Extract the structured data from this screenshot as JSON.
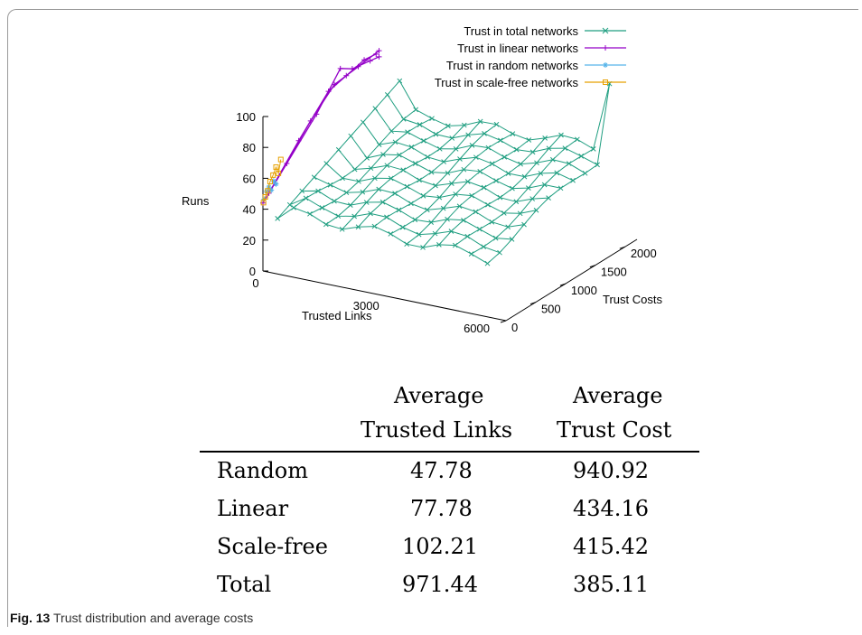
{
  "chart_data": {
    "type": "line",
    "plot_style": "3d-surface",
    "xlabel": "Trusted Links",
    "ylabel": "Trust Costs",
    "zlabel": "Runs",
    "x_ticks": [
      "0",
      "3000",
      "6000"
    ],
    "y_ticks": [
      "0",
      "500",
      "1000",
      "1500",
      "2000"
    ],
    "z_ticks": [
      "0",
      "20",
      "40",
      "60",
      "80",
      "100"
    ],
    "xlim": [
      0,
      6600
    ],
    "ylim": [
      0,
      2200
    ],
    "zlim": [
      0,
      100
    ],
    "grid": false,
    "legend_position": "top-right",
    "series": [
      {
        "name": "Trust in total networks",
        "color": "#1f9e80",
        "marker": "x"
      },
      {
        "name": "Trust in linear networks",
        "color": "#9400c8",
        "marker": "+"
      },
      {
        "name": "Trust in random networks",
        "color": "#56b4e9",
        "marker": "*"
      },
      {
        "name": "Trust in scale-free networks",
        "color": "#e6a000",
        "marker": "square"
      }
    ]
  },
  "table": {
    "headers": [
      [
        "",
        "Average",
        "Average"
      ],
      [
        "",
        "Trusted Links",
        "Trust Cost"
      ]
    ],
    "rows": [
      {
        "label": "Random",
        "links": "47.78",
        "cost": "940.92"
      },
      {
        "label": "Linear",
        "links": "77.78",
        "cost": "434.16"
      },
      {
        "label": "Scale-free",
        "links": "102.21",
        "cost": "415.42"
      },
      {
        "label": "Total",
        "links": "971.44",
        "cost": "385.11"
      }
    ]
  },
  "caption": {
    "label": "Fig. 13",
    "text": "Trust distribution and average costs"
  }
}
